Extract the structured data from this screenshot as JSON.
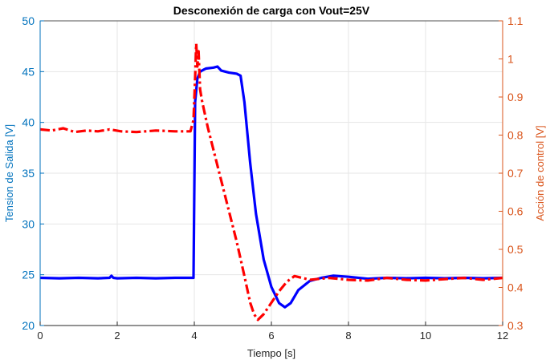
{
  "chart_data": {
    "type": "line",
    "title": "Desconexión de carga con Vout=25V",
    "xlabel": "Tiempo [s]",
    "ylabel_left": "Tension de Salida [V]",
    "ylabel_right": "Acción de control [V]",
    "xlim": [
      0,
      12
    ],
    "ylim_left": [
      20,
      50
    ],
    "ylim_right": [
      0.3,
      1.1
    ],
    "grid": true,
    "xticks": [
      0,
      2,
      4,
      6,
      8,
      10,
      12
    ],
    "xtick_labels": [
      "0",
      "2",
      "4",
      "6",
      "8",
      "10",
      "12"
    ],
    "yticks_left": [
      20,
      25,
      30,
      35,
      40,
      45,
      50
    ],
    "ytick_labels_left": [
      "20",
      "25",
      "30",
      "35",
      "40",
      "45",
      "50"
    ],
    "yticks_right": [
      0.3,
      0.4,
      0.5,
      0.6,
      0.7,
      0.8,
      0.9,
      1.0,
      1.1
    ],
    "ytick_labels_right": [
      "0.3",
      "0.4",
      "0.5",
      "0.6",
      "0.7",
      "0.8",
      "0.9",
      "1",
      "1.1"
    ],
    "colors": {
      "left_axis": "#0072BD",
      "right_axis": "#D95319",
      "series_left": "#0000ff",
      "series_right": "#ff0000",
      "grid": "#e6e6e6"
    },
    "series": [
      {
        "axis": "left",
        "style": "solid",
        "x": [
          0,
          0.5,
          1.0,
          1.5,
          1.8,
          1.85,
          1.9,
          2.0,
          2.5,
          3.0,
          3.5,
          3.95,
          3.98,
          4.02,
          4.08,
          4.15,
          4.3,
          4.5,
          4.6,
          4.7,
          4.9,
          5.1,
          5.2,
          5.3,
          5.45,
          5.6,
          5.8,
          6.0,
          6.2,
          6.35,
          6.5,
          6.7,
          7.0,
          7.3,
          7.6,
          8.0,
          8.5,
          9.0,
          9.5,
          10.0,
          10.5,
          11.0,
          11.5,
          12.0
        ],
        "y": [
          24.7,
          24.65,
          24.7,
          24.65,
          24.7,
          24.9,
          24.7,
          24.65,
          24.7,
          24.65,
          24.7,
          24.7,
          24.7,
          42.0,
          44.3,
          45.0,
          45.3,
          45.4,
          45.5,
          45.1,
          44.9,
          44.8,
          44.6,
          42.0,
          36.0,
          31.0,
          26.5,
          23.8,
          22.2,
          21.8,
          22.2,
          23.5,
          24.4,
          24.7,
          24.9,
          24.8,
          24.6,
          24.7,
          24.65,
          24.7,
          24.65,
          24.7,
          24.65,
          24.7
        ]
      },
      {
        "axis": "right",
        "style": "dashdot",
        "x": [
          0,
          0.3,
          0.6,
          0.9,
          1.2,
          1.5,
          1.8,
          2.1,
          2.5,
          3.0,
          3.5,
          3.9,
          3.98,
          4.02,
          4.05,
          4.08,
          4.11,
          4.15,
          4.2,
          4.35,
          4.6,
          4.85,
          5.1,
          5.3,
          5.45,
          5.55,
          5.65,
          5.8,
          6.0,
          6.2,
          6.4,
          6.6,
          6.8,
          7.0,
          7.5,
          8.0,
          8.5,
          9.0,
          9.5,
          10.0,
          10.5,
          11.0,
          11.5,
          12.0
        ],
        "y": [
          0.815,
          0.812,
          0.818,
          0.808,
          0.812,
          0.81,
          0.815,
          0.81,
          0.808,
          0.812,
          0.81,
          0.81,
          0.84,
          0.95,
          1.04,
          0.98,
          1.02,
          0.92,
          0.89,
          0.82,
          0.72,
          0.62,
          0.52,
          0.43,
          0.36,
          0.33,
          0.315,
          0.33,
          0.36,
          0.39,
          0.415,
          0.43,
          0.425,
          0.42,
          0.425,
          0.42,
          0.418,
          0.425,
          0.42,
          0.418,
          0.422,
          0.425,
          0.42,
          0.425
        ]
      }
    ]
  }
}
